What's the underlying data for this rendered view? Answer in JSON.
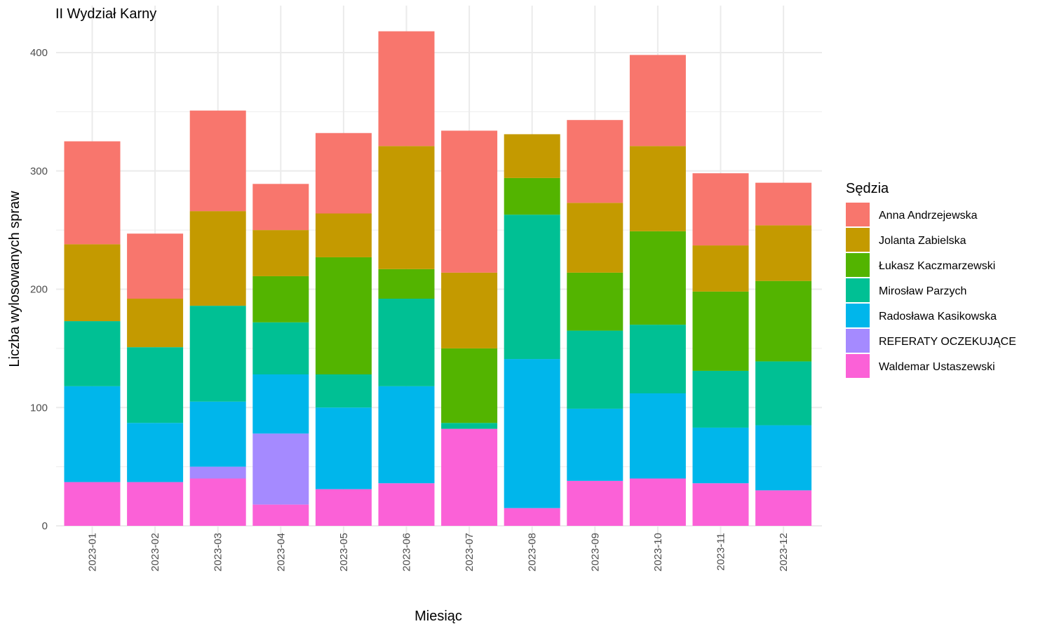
{
  "chart_data": {
    "type": "bar",
    "stacked": true,
    "title": "II Wydział Karny",
    "xlabel": "Miesiąc",
    "ylabel": "Liczba wylosowanych spraw",
    "ylim": [
      0,
      430
    ],
    "yticks": [
      0,
      100,
      200,
      300,
      400
    ],
    "grid": true,
    "legend_title": "Sędzia",
    "legend_position": "right",
    "categories": [
      "2023-01",
      "2023-02",
      "2023-03",
      "2023-04",
      "2023-05",
      "2023-06",
      "2023-07",
      "2023-08",
      "2023-09",
      "2023-10",
      "2023-11",
      "2023-12"
    ],
    "series": [
      {
        "name": "Waldemar Ustaszewski",
        "color": "#FB61D7",
        "values": [
          37,
          37,
          40,
          18,
          31,
          36,
          82,
          15,
          38,
          40,
          36,
          30
        ]
      },
      {
        "name": "REFERATY OCZEKUJĄCE",
        "color": "#A58AFF",
        "values": [
          0,
          0,
          10,
          60,
          0,
          0,
          0,
          0,
          0,
          0,
          0,
          0
        ]
      },
      {
        "name": "Radosława Kasikowska",
        "color": "#00B6EB",
        "values": [
          81,
          50,
          55,
          50,
          69,
          82,
          0,
          126,
          61,
          72,
          47,
          55
        ]
      },
      {
        "name": "Mirosław Parzych",
        "color": "#00C094",
        "values": [
          55,
          64,
          81,
          44,
          28,
          74,
          5,
          122,
          66,
          58,
          48,
          54
        ]
      },
      {
        "name": "Łukasz Kaczmarzewski",
        "color": "#53B400",
        "values": [
          0,
          0,
          0,
          39,
          99,
          25,
          63,
          31,
          49,
          79,
          67,
          68
        ]
      },
      {
        "name": "Jolanta Zabielska",
        "color": "#C49A00",
        "values": [
          65,
          41,
          80,
          39,
          37,
          104,
          64,
          37,
          59,
          72,
          39,
          47
        ]
      },
      {
        "name": "Anna Andrzejewska",
        "color": "#F8766D",
        "values": [
          87,
          55,
          85,
          39,
          68,
          97,
          120,
          0,
          70,
          77,
          61,
          36
        ]
      }
    ],
    "legend_order": [
      "Anna Andrzejewska",
      "Jolanta Zabielska",
      "Łukasz Kaczmarzewski",
      "Mirosław Parzych",
      "Radosława Kasikowska",
      "REFERATY OCZEKUJĄCE",
      "Waldemar Ustaszewski"
    ]
  }
}
